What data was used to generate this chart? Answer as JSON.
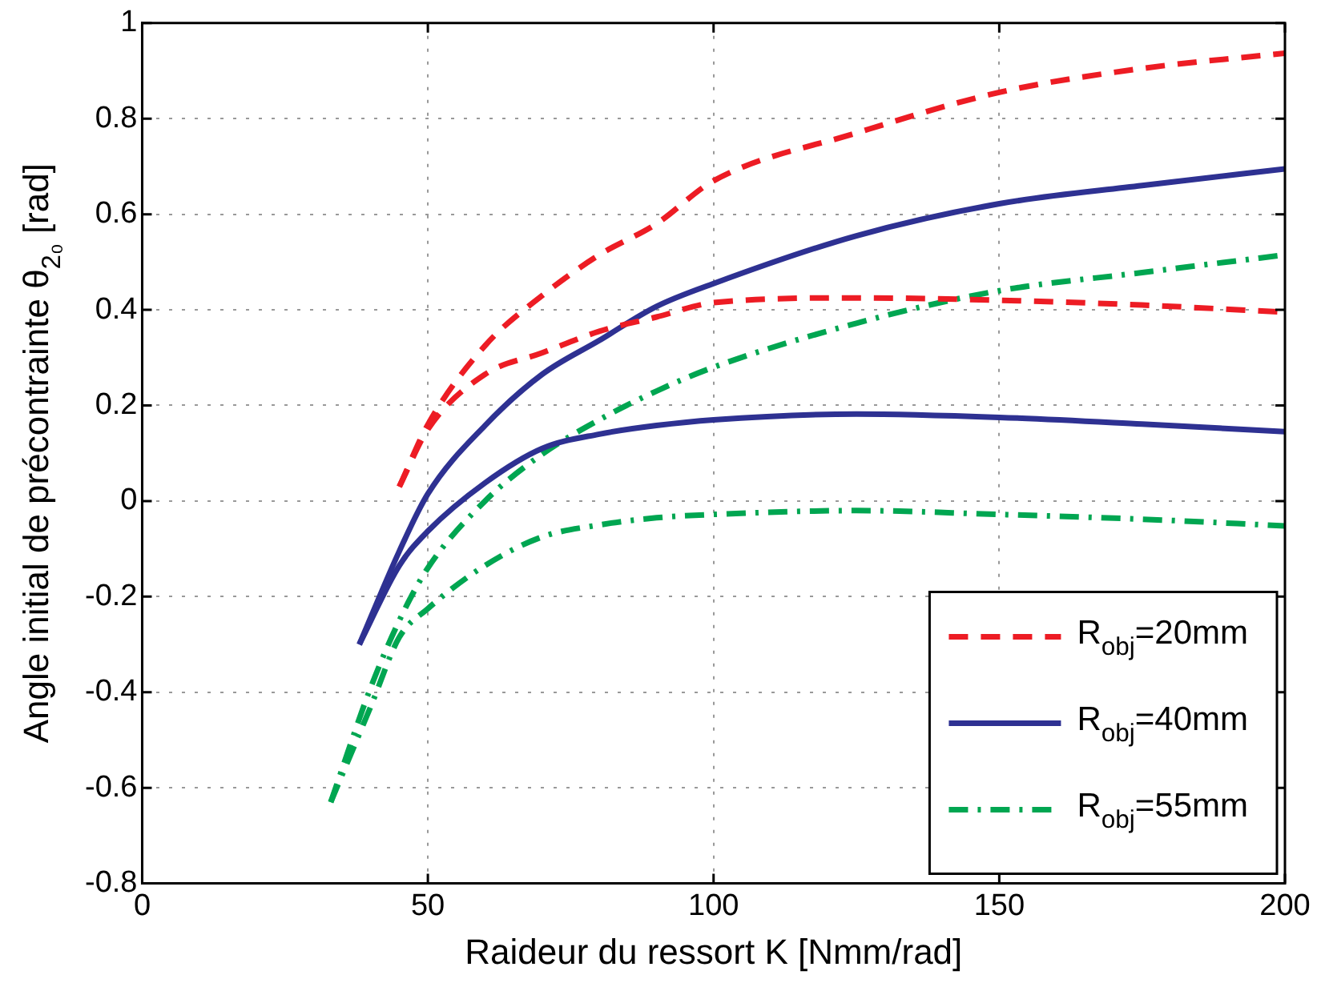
{
  "chart_data": {
    "type": "line",
    "xlabel": "Raideur du ressort K [Nmm/rad]",
    "ylabel": "Angle initial de précontrainte θ$_{2₀}$ [rad]",
    "xlim": [
      0,
      200
    ],
    "ylim": [
      -0.8,
      1
    ],
    "xticks": [
      0,
      50,
      100,
      150,
      200
    ],
    "yticks": [
      -0.8,
      -0.6,
      -0.4,
      -0.2,
      0,
      0.2,
      0.4,
      0.6,
      0.8,
      1
    ],
    "grid": true,
    "legend": "bottom right",
    "series": [
      {
        "name": "R$_{obj}$=20mm",
        "color": "#ed1c24",
        "line_style": "dashed",
        "x": [
          45,
          50,
          60,
          70,
          80,
          90,
          100,
          125,
          150,
          175,
          200
        ],
        "values": [
          0.03,
          0.16,
          0.325,
          0.43,
          0.515,
          0.58,
          0.67,
          0.77,
          0.855,
          0.905,
          0.937
        ]
      },
      {
        "color": "#ed1c24",
        "line_style": "dashed",
        "x": [
          45,
          50,
          60,
          70,
          80,
          90,
          100,
          125,
          150,
          175,
          200
        ],
        "values": [
          0.03,
          0.15,
          0.265,
          0.31,
          0.355,
          0.385,
          0.415,
          0.425,
          0.42,
          0.41,
          0.395
        ]
      },
      {
        "name": "R$_{obj}$=40mm",
        "color": "#2e3192",
        "line_style": "solid",
        "x": [
          38,
          45,
          50,
          60,
          70,
          80,
          90,
          100,
          125,
          150,
          175,
          200
        ],
        "values": [
          -0.3,
          -0.105,
          0.015,
          0.158,
          0.265,
          0.336,
          0.407,
          0.455,
          0.555,
          0.622,
          0.66,
          0.695
        ]
      },
      {
        "color": "#2e3192",
        "line_style": "solid",
        "x": [
          38,
          45,
          50,
          60,
          70,
          80,
          90,
          100,
          125,
          150,
          175,
          200
        ],
        "values": [
          -0.3,
          -0.135,
          -0.063,
          0.038,
          0.11,
          0.14,
          0.158,
          0.17,
          0.182,
          0.175,
          0.161,
          0.145
        ]
      },
      {
        "name": "R$_{obj}$=55mm",
        "color": "#00a651",
        "line_style": "dashdot",
        "x": [
          33,
          40,
          45,
          50,
          60,
          70,
          80,
          90,
          100,
          125,
          150,
          175,
          200
        ],
        "values": [
          -0.63,
          -0.39,
          -0.25,
          -0.14,
          0,
          0.098,
          0.17,
          0.23,
          0.28,
          0.372,
          0.44,
          0.478,
          0.515
        ]
      },
      {
        "color": "#00a651",
        "line_style": "dashdot",
        "x": [
          33,
          40,
          45,
          50,
          60,
          70,
          80,
          90,
          100,
          125,
          150,
          175,
          200
        ],
        "values": [
          -0.63,
          -0.43,
          -0.285,
          -0.225,
          -0.135,
          -0.075,
          -0.05,
          -0.035,
          -0.028,
          -0.02,
          -0.028,
          -0.038,
          -0.052
        ]
      }
    ]
  }
}
